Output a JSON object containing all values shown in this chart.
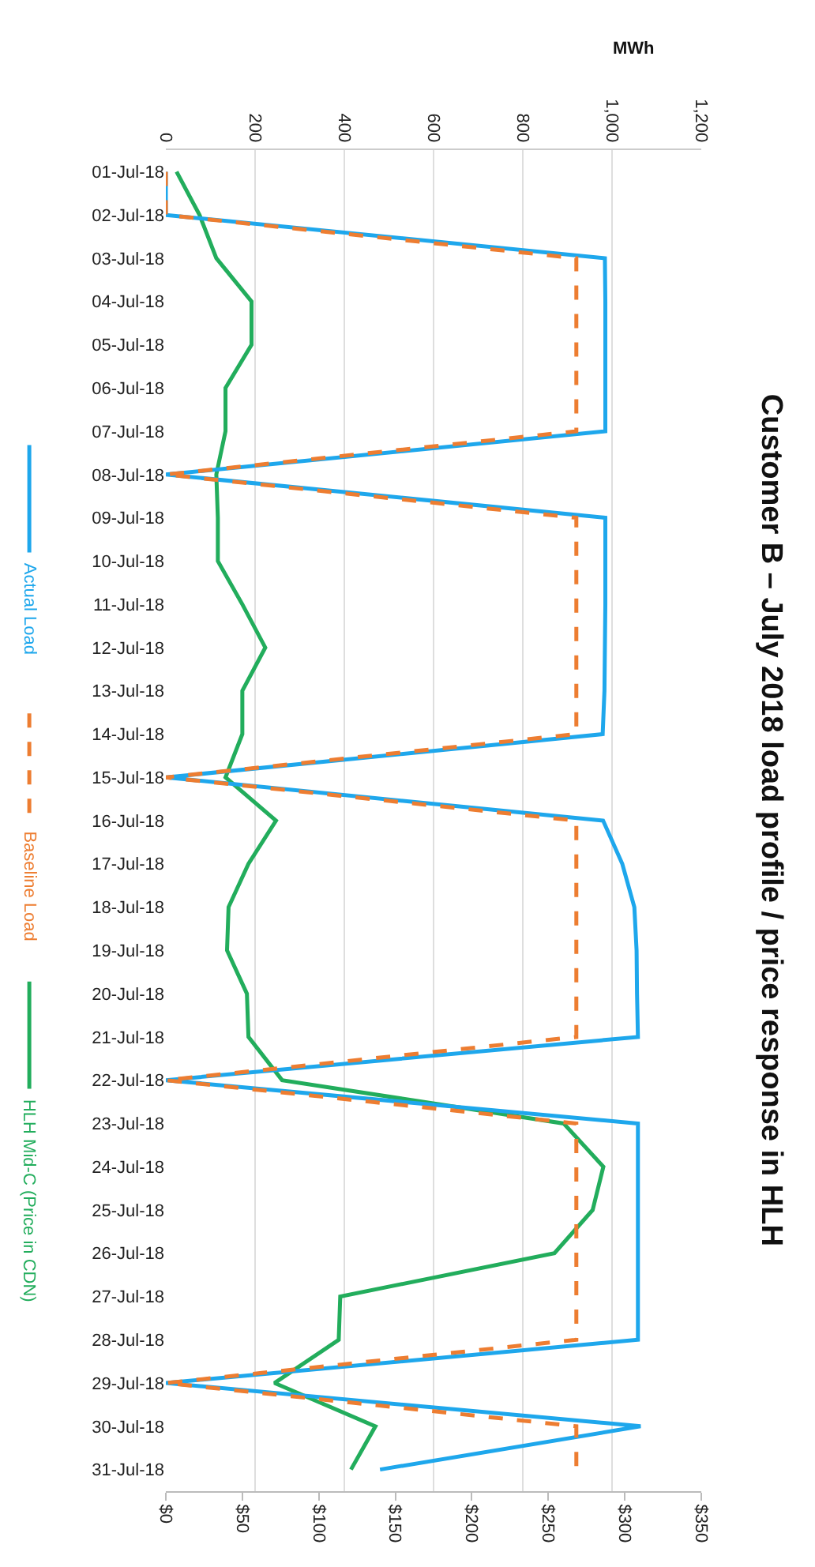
{
  "chart_data": {
    "type": "line",
    "title": "Customer B – July 2018 load profile / price response in HLH",
    "orientation": "horizontal",
    "x2label": "MWh",
    "categories": [
      "01-Jul-18",
      "02-Jul-18",
      "03-Jul-18",
      "04-Jul-18",
      "05-Jul-18",
      "06-Jul-18",
      "07-Jul-18",
      "08-Jul-18",
      "09-Jul-18",
      "10-Jul-18",
      "11-Jul-18",
      "12-Jul-18",
      "13-Jul-18",
      "14-Jul-18",
      "15-Jul-18",
      "16-Jul-18",
      "17-Jul-18",
      "18-Jul-18",
      "19-Jul-18",
      "20-Jul-18",
      "21-Jul-18",
      "22-Jul-18",
      "23-Jul-18",
      "24-Jul-18",
      "25-Jul-18",
      "26-Jul-18",
      "27-Jul-18",
      "28-Jul-18",
      "29-Jul-18",
      "30-Jul-18",
      "31-Jul-18"
    ],
    "series": [
      {
        "name": "Actual Load",
        "color": "#1ea7ec",
        "axis": "x2",
        "line_style": "solid",
        "values": [
          0,
          0,
          984,
          985,
          985,
          985,
          985,
          0,
          985,
          985,
          985,
          984,
          983,
          979,
          0,
          980,
          1023,
          1050,
          1055,
          1056,
          1058,
          0,
          1058,
          1058,
          1058,
          1058,
          1058,
          1058,
          0,
          1064,
          480
        ]
      },
      {
        "name": "Baseline Load",
        "color": "#ed7d31",
        "axis": "x2",
        "line_style": "dashed",
        "values": [
          0,
          0,
          920,
          920,
          920,
          920,
          920,
          0,
          920,
          920,
          920,
          920,
          920,
          920,
          0,
          920,
          920,
          920,
          920,
          920,
          920,
          0,
          920,
          920,
          920,
          920,
          920,
          920,
          0,
          920,
          920
        ]
      },
      {
        "name": "HLH Mid-C (Price in CDN)",
        "color": "#22ad5c",
        "line_style": "solid",
        "values": [
          7,
          22,
          33,
          56,
          56,
          39,
          39,
          33,
          34,
          34,
          50,
          65,
          50,
          50,
          39,
          72,
          54,
          41,
          40,
          53,
          54,
          76,
          260,
          286,
          279,
          254,
          114,
          113,
          71,
          137,
          121
        ]
      }
    ],
    "xlim": [
      0,
      350
    ],
    "xticks": [
      {
        "value": 0,
        "label": "$0"
      },
      {
        "value": 50,
        "label": "$50"
      },
      {
        "value": 100,
        "label": "$100"
      },
      {
        "value": 150,
        "label": "$150"
      },
      {
        "value": 200,
        "label": "$200"
      },
      {
        "value": 250,
        "label": "$250"
      },
      {
        "value": 300,
        "label": "$300"
      },
      {
        "value": 350,
        "label": "$350"
      }
    ],
    "x2lim": [
      0,
      1200
    ],
    "x2ticks": [
      0,
      200,
      400,
      600,
      800,
      {
        "value": 1000,
        "label": "1,000"
      },
      {
        "value": 1200,
        "label": "1,200"
      }
    ],
    "grid": "x",
    "legend": "left",
    "marker": "none"
  }
}
